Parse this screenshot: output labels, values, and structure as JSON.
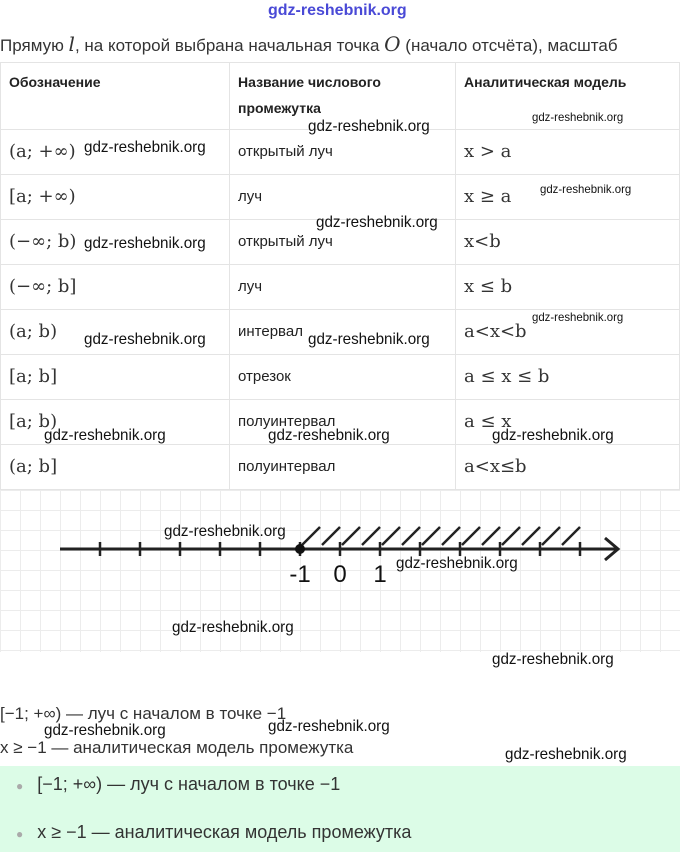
{
  "watermark": "gdz-reshebnik.org",
  "site_header": "gdz-reshebnik.org",
  "intro": {
    "before": "Прямую ",
    "l": "l",
    "mid": ", на которой выбрана начальная точка ",
    "O": "O",
    "after": " (начало отсчёта), масштаб"
  },
  "table": {
    "headers": [
      "Обозначение",
      "Название числового промежутка",
      "Аналитическая модель"
    ],
    "rows": [
      [
        "(a; +∞)",
        "открытый луч",
        "x > a"
      ],
      [
        "[a; +∞)",
        "луч",
        "x ≥ a"
      ],
      [
        "(−∞; b)",
        "открытый луч",
        "x<b"
      ],
      [
        "(−∞; b]",
        "луч",
        "x ≤ b"
      ],
      [
        "(a; b)",
        "интервал",
        "a<x<b"
      ],
      [
        "[a; b]",
        "отрезок",
        "a ≤ x ≤ b"
      ],
      [
        "[a; b)",
        "полуинтервал",
        "a ≤ x"
      ],
      [
        "(a; b]",
        "полуинтервал",
        "a<x≤b"
      ]
    ]
  },
  "number_line": {
    "labels": [
      "-1",
      "0",
      "1"
    ],
    "point": -1,
    "shaded": "right",
    "point_filled": true
  },
  "text_lines": [
    "[−1; +∞) — луч с началом в точке −1",
    "x ≥ −1 — аналитическая модель промежутка"
  ],
  "summary": {
    "bg_color": "#dcfce7",
    "items": [
      "[−1; +∞) — луч с началом в точке −1",
      "x ≥ −1 — аналитическая модель промежутка"
    ]
  }
}
